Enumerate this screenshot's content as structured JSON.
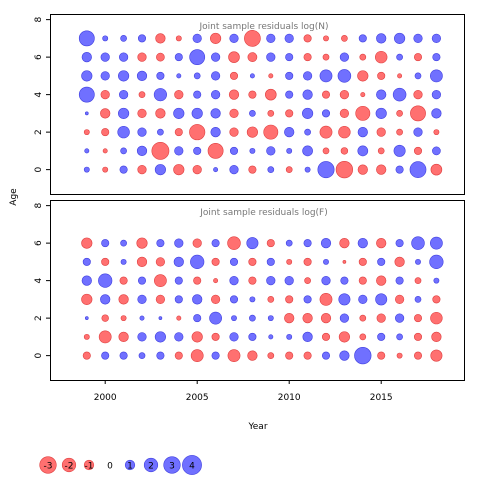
{
  "chart_data": {
    "type": "scatter",
    "subtype": "bubble",
    "xlabel": "Year",
    "ylabel": "Age",
    "xlim": [
      1997,
      2019.5
    ],
    "ylim": [
      -1.3,
      8.3
    ],
    "x_ticks": [
      2000,
      2005,
      2010,
      2015
    ],
    "y_ticks": [
      0,
      2,
      4,
      6,
      8
    ],
    "years": [
      1999,
      2000,
      2001,
      2002,
      2003,
      2004,
      2005,
      2006,
      2007,
      2008,
      2009,
      2010,
      2011,
      2012,
      2013,
      2014,
      2015,
      2016,
      2017,
      2018
    ],
    "ages": [
      0,
      1,
      2,
      3,
      4,
      5,
      6,
      7
    ],
    "colors": {
      "positive": "#7070ff",
      "negative": "#ff7070",
      "positive_edge": "#4040e0",
      "negative_edge": "#e04040"
    },
    "panels": [
      {
        "title": "Joint sample residuals log(N)",
        "residuals": [
          [
            0.3,
            -0.3,
            0.6,
            -0.8,
            1.2,
            -1.2,
            -0.8,
            0.2,
            0.8,
            -0.6,
            0.4,
            -0.4,
            0.3,
            2.9,
            -3.0,
            -1.0,
            -1.0,
            0.6,
            2.8,
            -1.3
          ],
          [
            0.2,
            -0.2,
            0.4,
            1.0,
            -3.2,
            0.8,
            0.6,
            -2.5,
            0.6,
            0.3,
            0.8,
            0.3,
            1.1,
            -0.4,
            -0.5,
            1.1,
            -0.4,
            1.4,
            -0.6,
            0.7
          ],
          [
            -0.3,
            -0.6,
            1.5,
            0.8,
            0.4,
            -0.6,
            -2.6,
            1.0,
            -0.8,
            -1.2,
            -2.2,
            1.0,
            0.4,
            -1.6,
            -1.5,
            1.0,
            -0.8,
            -0.4,
            0.8,
            -0.3
          ],
          [
            0.1,
            -1.0,
            1.2,
            -0.8,
            -1.0,
            1.2,
            1.2,
            1.0,
            -0.8,
            0.4,
            -0.4,
            -0.6,
            1.2,
            0.6,
            -0.8,
            -2.2,
            1.2,
            -0.4,
            -2.5,
            1.0
          ],
          [
            2.5,
            -0.8,
            0.8,
            -0.4,
            1.7,
            -0.8,
            0.6,
            0.8,
            -1.0,
            -0.6,
            -1.3,
            0.6,
            1.0,
            -0.6,
            -0.8,
            -0.2,
            1.0,
            1.8,
            -0.8,
            0.8
          ],
          [
            1.2,
            0.8,
            1.2,
            1.0,
            0.6,
            0.2,
            0.4,
            0.8,
            -0.6,
            0.2,
            -0.2,
            0.6,
            0.8,
            1.6,
            1.8,
            -1.2,
            -0.6,
            -0.2,
            0.4,
            1.6
          ],
          [
            1.0,
            0.8,
            0.8,
            -0.8,
            -0.7,
            0.6,
            2.5,
            0.8,
            -1.3,
            -0.9,
            0.8,
            0.6,
            -0.6,
            -0.4,
            0.8,
            -0.4,
            -1.5,
            0.4,
            -0.6,
            0.6
          ],
          [
            2.5,
            0.3,
            0.4,
            0.6,
            -1.0,
            -0.3,
            0.8,
            -1.2,
            0.8,
            -2.8,
            0.8,
            0.8,
            -0.6,
            -0.3,
            -0.4,
            0.6,
            1.0,
            1.2,
            0.8,
            0.8
          ]
        ]
      },
      {
        "title": "Joint sample residuals log(F)",
        "residuals": [
          [
            -0.6,
            0.6,
            0.6,
            0.4,
            0.6,
            -0.6,
            -1.6,
            0.6,
            -1.6,
            -1.0,
            -0.4,
            -0.6,
            -0.6,
            0.6,
            1.0,
            3.0,
            -0.6,
            -0.3,
            -0.6,
            -1.4
          ],
          [
            -0.3,
            -1.6,
            -1.0,
            0.8,
            1.2,
            0.8,
            -1.2,
            -0.6,
            0.8,
            0.6,
            0.2,
            0.3,
            1.0,
            -0.6,
            -1.2,
            -0.4,
            0.6,
            0.4,
            -0.6,
            -1.0
          ],
          [
            0.1,
            -0.5,
            -0.3,
            0.2,
            0.1,
            -0.2,
            0.6,
            1.6,
            0.3,
            0.4,
            0.3,
            -1.0,
            -1.0,
            -1.0,
            0.8,
            -0.4,
            -0.8,
            0.8,
            -0.6,
            -1.5
          ],
          [
            -1.2,
            1.0,
            -1.0,
            0.8,
            -0.8,
            0.6,
            1.0,
            -0.8,
            0.6,
            0.3,
            -0.4,
            -0.6,
            0.6,
            -1.6,
            1.4,
            0.8,
            1.4,
            -0.8,
            0.4,
            -0.6
          ],
          [
            1.0,
            2.0,
            -0.6,
            0.6,
            -1.6,
            0.6,
            -0.6,
            -0.2,
            0.8,
            -0.6,
            0.8,
            0.8,
            -0.4,
            0.8,
            0.6,
            -0.6,
            -1.0,
            0.6,
            -0.4,
            0.3
          ],
          [
            0.6,
            -0.6,
            0.3,
            -1.0,
            -0.8,
            1.0,
            2.0,
            -0.6,
            0.6,
            -0.6,
            0.6,
            -0.3,
            -0.6,
            0.3,
            -0.1,
            -0.6,
            0.6,
            -1.0,
            0.3,
            2.0
          ],
          [
            -1.2,
            0.6,
            0.4,
            -1.2,
            0.6,
            0.8,
            -0.8,
            0.6,
            -1.8,
            1.4,
            -0.6,
            0.4,
            0.6,
            1.0,
            -1.0,
            1.0,
            -1.0,
            0.6,
            1.8,
            1.6
          ],
          [
            0,
            0,
            0,
            0,
            0,
            0,
            0,
            0,
            0,
            0,
            0,
            0,
            0,
            0,
            0,
            0,
            0,
            0,
            0,
            0
          ]
        ]
      }
    ],
    "legend": {
      "placement": "bottom-left",
      "entries": [
        "-3",
        "-2",
        "-1",
        "0",
        "1",
        "2",
        "3",
        "4"
      ],
      "values": [
        -3,
        -2,
        -1,
        0,
        1,
        2,
        3,
        4
      ]
    }
  }
}
